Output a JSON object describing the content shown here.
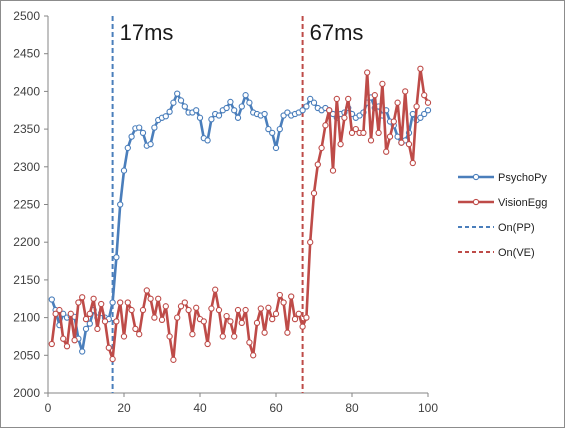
{
  "chart_data": {
    "type": "line",
    "xlim": [
      0,
      100
    ],
    "ylim": [
      2000,
      2500
    ],
    "x_ticks": [
      0,
      20,
      40,
      60,
      80,
      100
    ],
    "y_ticks": [
      2000,
      2050,
      2100,
      2150,
      2200,
      2250,
      2300,
      2350,
      2400,
      2450,
      2500
    ],
    "grid": false,
    "legend_position": "right",
    "series": [
      {
        "name": "PsychoPy",
        "color": "#4a7ebb",
        "style": "solid-marker",
        "x": [
          1,
          2,
          3,
          4,
          5,
          6,
          7,
          8,
          9,
          10,
          11,
          12,
          13,
          14,
          15,
          16,
          17,
          18,
          19,
          20,
          21,
          22,
          23,
          24,
          25,
          26,
          27,
          28,
          29,
          30,
          31,
          32,
          33,
          34,
          35,
          36,
          37,
          38,
          39,
          40,
          41,
          42,
          43,
          44,
          45,
          46,
          47,
          48,
          49,
          50,
          51,
          52,
          53,
          54,
          55,
          56,
          57,
          58,
          59,
          60,
          61,
          62,
          63,
          64,
          65,
          66,
          67,
          68,
          69,
          70,
          71,
          72,
          73,
          74,
          75,
          76,
          77,
          78,
          79,
          80,
          81,
          82,
          83,
          84,
          85,
          86,
          87,
          88,
          89,
          90,
          91,
          92,
          93,
          94,
          95,
          96,
          97,
          98,
          99,
          100
        ],
        "y": [
          2124,
          2110,
          2090,
          2105,
          2100,
          2102,
          2101,
          2072,
          2055,
          2085,
          2092,
          2110,
          2100,
          2106,
          2100,
          2098,
          2120,
          2180,
          2250,
          2295,
          2325,
          2340,
          2351,
          2352,
          2345,
          2328,
          2330,
          2352,
          2362,
          2365,
          2367,
          2373,
          2385,
          2397,
          2388,
          2380,
          2372,
          2372,
          2375,
          2365,
          2338,
          2335,
          2363,
          2370,
          2368,
          2375,
          2378,
          2386,
          2375,
          2365,
          2380,
          2395,
          2385,
          2372,
          2370,
          2368,
          2370,
          2350,
          2345,
          2325,
          2350,
          2368,
          2372,
          2368,
          2370,
          2372,
          2375,
          2380,
          2390,
          2385,
          2378,
          2375,
          2378,
          2375,
          2370,
          2365,
          2370,
          2372,
          2378,
          2370,
          2365,
          2368,
          2372,
          2385,
          2392,
          2378,
          2380,
          2368,
          2375,
          2360,
          2355,
          2340,
          2332,
          2335,
          2345,
          2370,
          2362,
          2365,
          2370,
          2375
        ]
      },
      {
        "name": "VisionEgg",
        "color": "#be4b48",
        "style": "solid-marker",
        "x": [
          1,
          2,
          3,
          4,
          5,
          6,
          7,
          8,
          9,
          10,
          11,
          12,
          13,
          14,
          15,
          16,
          17,
          18,
          19,
          20,
          21,
          22,
          23,
          24,
          25,
          26,
          27,
          28,
          29,
          30,
          31,
          32,
          33,
          34,
          35,
          36,
          37,
          38,
          39,
          40,
          41,
          42,
          43,
          44,
          45,
          46,
          47,
          48,
          49,
          50,
          51,
          52,
          53,
          54,
          55,
          56,
          57,
          58,
          59,
          60,
          61,
          62,
          63,
          64,
          65,
          66,
          67,
          68,
          69,
          70,
          71,
          72,
          73,
          74,
          75,
          76,
          77,
          78,
          79,
          80,
          81,
          82,
          83,
          84,
          85,
          86,
          87,
          88,
          89,
          90,
          91,
          92,
          93,
          94,
          95,
          96,
          97,
          98,
          99,
          100
        ],
        "y": [
          2065,
          2105,
          2110,
          2072,
          2062,
          2105,
          2070,
          2120,
          2127,
          2098,
          2105,
          2125,
          2085,
          2118,
          2095,
          2060,
          2045,
          2095,
          2120,
          2075,
          2120,
          2110,
          2085,
          2078,
          2110,
          2136,
          2125,
          2100,
          2125,
          2097,
          2115,
          2075,
          2044,
          2100,
          2115,
          2120,
          2110,
          2078,
          2113,
          2098,
          2095,
          2065,
          2112,
          2137,
          2110,
          2075,
          2102,
          2095,
          2075,
          2110,
          2093,
          2110,
          2067,
          2050,
          2093,
          2112,
          2080,
          2113,
          2098,
          2105,
          2130,
          2120,
          2080,
          2128,
          2098,
          2105,
          2088,
          2100,
          2200,
          2265,
          2303,
          2325,
          2355,
          2375,
          2295,
          2390,
          2330,
          2365,
          2390,
          2345,
          2350,
          2345,
          2345,
          2425,
          2335,
          2395,
          2345,
          2410,
          2320,
          2340,
          2360,
          2385,
          2332,
          2400,
          2330,
          2305,
          2380,
          2430,
          2395,
          2385
        ]
      },
      {
        "name": "On(PP)",
        "color": "#4a7ebb",
        "style": "dashed-vertical",
        "x_value": 17,
        "label": "17ms"
      },
      {
        "name": "On(VE)",
        "color": "#be4b48",
        "style": "dashed-vertical",
        "x_value": 67,
        "label": "67ms"
      }
    ]
  }
}
